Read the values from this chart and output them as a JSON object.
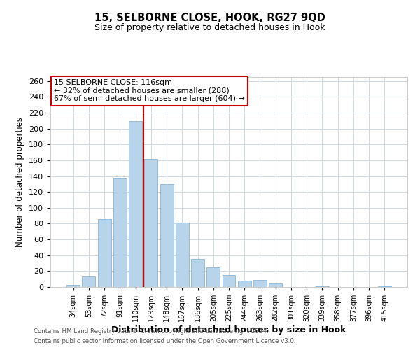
{
  "title": "15, SELBORNE CLOSE, HOOK, RG27 9QD",
  "subtitle": "Size of property relative to detached houses in Hook",
  "xlabel": "Distribution of detached houses by size in Hook",
  "ylabel": "Number of detached properties",
  "categories": [
    "34sqm",
    "53sqm",
    "72sqm",
    "91sqm",
    "110sqm",
    "129sqm",
    "148sqm",
    "167sqm",
    "186sqm",
    "205sqm",
    "225sqm",
    "244sqm",
    "263sqm",
    "282sqm",
    "301sqm",
    "320sqm",
    "339sqm",
    "358sqm",
    "377sqm",
    "396sqm",
    "415sqm"
  ],
  "values": [
    3,
    13,
    86,
    138,
    209,
    162,
    130,
    81,
    35,
    25,
    15,
    8,
    9,
    4,
    0,
    0,
    1,
    0,
    0,
    0,
    1
  ],
  "bar_color": "#b8d4ea",
  "bar_edge_color": "#8ab4d4",
  "vline_x": 4.5,
  "vline_color": "#cc0000",
  "ylim": [
    0,
    265
  ],
  "yticks": [
    0,
    20,
    40,
    60,
    80,
    100,
    120,
    140,
    160,
    180,
    200,
    220,
    240,
    260
  ],
  "annotation_title": "15 SELBORNE CLOSE: 116sqm",
  "annotation_line1": "← 32% of detached houses are smaller (288)",
  "annotation_line2": "67% of semi-detached houses are larger (604) →",
  "annotation_box_color": "#ffffff",
  "annotation_box_edge": "#cc0000",
  "footer1": "Contains HM Land Registry data © Crown copyright and database right 2024.",
  "footer2": "Contains public sector information licensed under the Open Government Licence v3.0.",
  "background_color": "#ffffff",
  "grid_color": "#d0d8e0"
}
